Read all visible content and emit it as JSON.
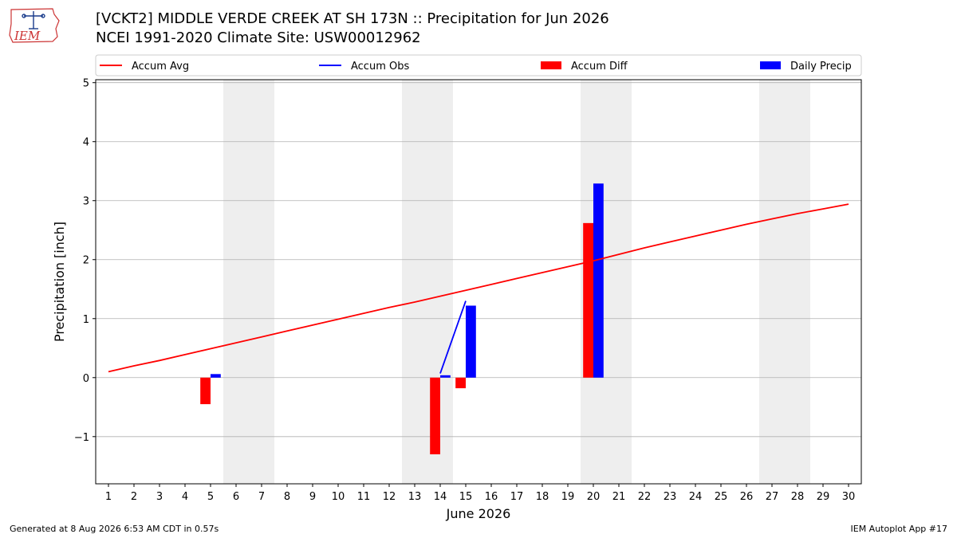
{
  "header": {
    "title": "[VCKT2] MIDDLE VERDE CREEK AT SH 173N :: Precipitation for Jun 2026",
    "subtitle": "NCEI 1991-2020 Climate Site: USW00012962",
    "logo_text": "IEM"
  },
  "footer": {
    "generated": "Generated at 8 Aug 2026 6:53 AM CDT in 0.57s",
    "app": "IEM Autoplot App #17"
  },
  "colors": {
    "accum_avg": "#ff0000",
    "accum_obs": "#0000ff",
    "accum_diff": "#ff0000",
    "daily_precip": "#0000ff",
    "weekend_shade": "#eeeeee",
    "grid": "#b0b0b0"
  },
  "chart_data": {
    "type": "bar",
    "xlabel": "June 2026",
    "ylabel": "Precipitation [inch]",
    "xlim": [
      0.5,
      30.5
    ],
    "ylim": [
      -1.8,
      5.05
    ],
    "yticks": [
      -1,
      0,
      1,
      2,
      3,
      4,
      5
    ],
    "ytick_labels": [
      "−1",
      "0",
      "1",
      "2",
      "3",
      "4",
      "5"
    ],
    "xticks": [
      1,
      2,
      3,
      4,
      5,
      6,
      7,
      8,
      9,
      10,
      11,
      12,
      13,
      14,
      15,
      16,
      17,
      18,
      19,
      20,
      21,
      22,
      23,
      24,
      25,
      26,
      27,
      28,
      29,
      30
    ],
    "grid": "y",
    "legend_position": "top",
    "legend": [
      {
        "label": "Accum Avg",
        "kind": "line",
        "color": "#ff0000"
      },
      {
        "label": "Accum Obs",
        "kind": "line",
        "color": "#0000ff"
      },
      {
        "label": "Accum Diff",
        "kind": "bar",
        "color": "#ff0000"
      },
      {
        "label": "Daily Precip",
        "kind": "bar",
        "color": "#0000ff"
      }
    ],
    "weekend_spans": [
      [
        6,
        7
      ],
      [
        13,
        14
      ],
      [
        20,
        21
      ],
      [
        27,
        28
      ]
    ],
    "accum_avg": {
      "days": [
        1,
        2,
        3,
        4,
        5,
        6,
        7,
        8,
        9,
        10,
        11,
        12,
        13,
        14,
        15,
        16,
        17,
        18,
        19,
        20,
        21,
        22,
        23,
        24,
        25,
        26,
        27,
        28,
        29,
        30
      ],
      "values": [
        0.1,
        0.2,
        0.29,
        0.39,
        0.49,
        0.59,
        0.69,
        0.79,
        0.89,
        0.99,
        1.09,
        1.19,
        1.28,
        1.38,
        1.48,
        1.58,
        1.68,
        1.78,
        1.88,
        1.98,
        2.09,
        2.2,
        2.3,
        2.4,
        2.5,
        2.6,
        2.69,
        2.78,
        2.86,
        2.94
      ]
    },
    "accum_obs": {
      "days": [
        14,
        15
      ],
      "values": [
        0.07,
        1.3
      ]
    },
    "accum_diff": {
      "days": [
        5,
        14,
        15,
        20
      ],
      "values": [
        -0.45,
        -1.3,
        -0.18,
        2.62
      ]
    },
    "daily_precip": {
      "days": [
        5,
        14,
        15,
        20
      ],
      "values": [
        0.06,
        0.04,
        1.22,
        3.29
      ]
    }
  }
}
